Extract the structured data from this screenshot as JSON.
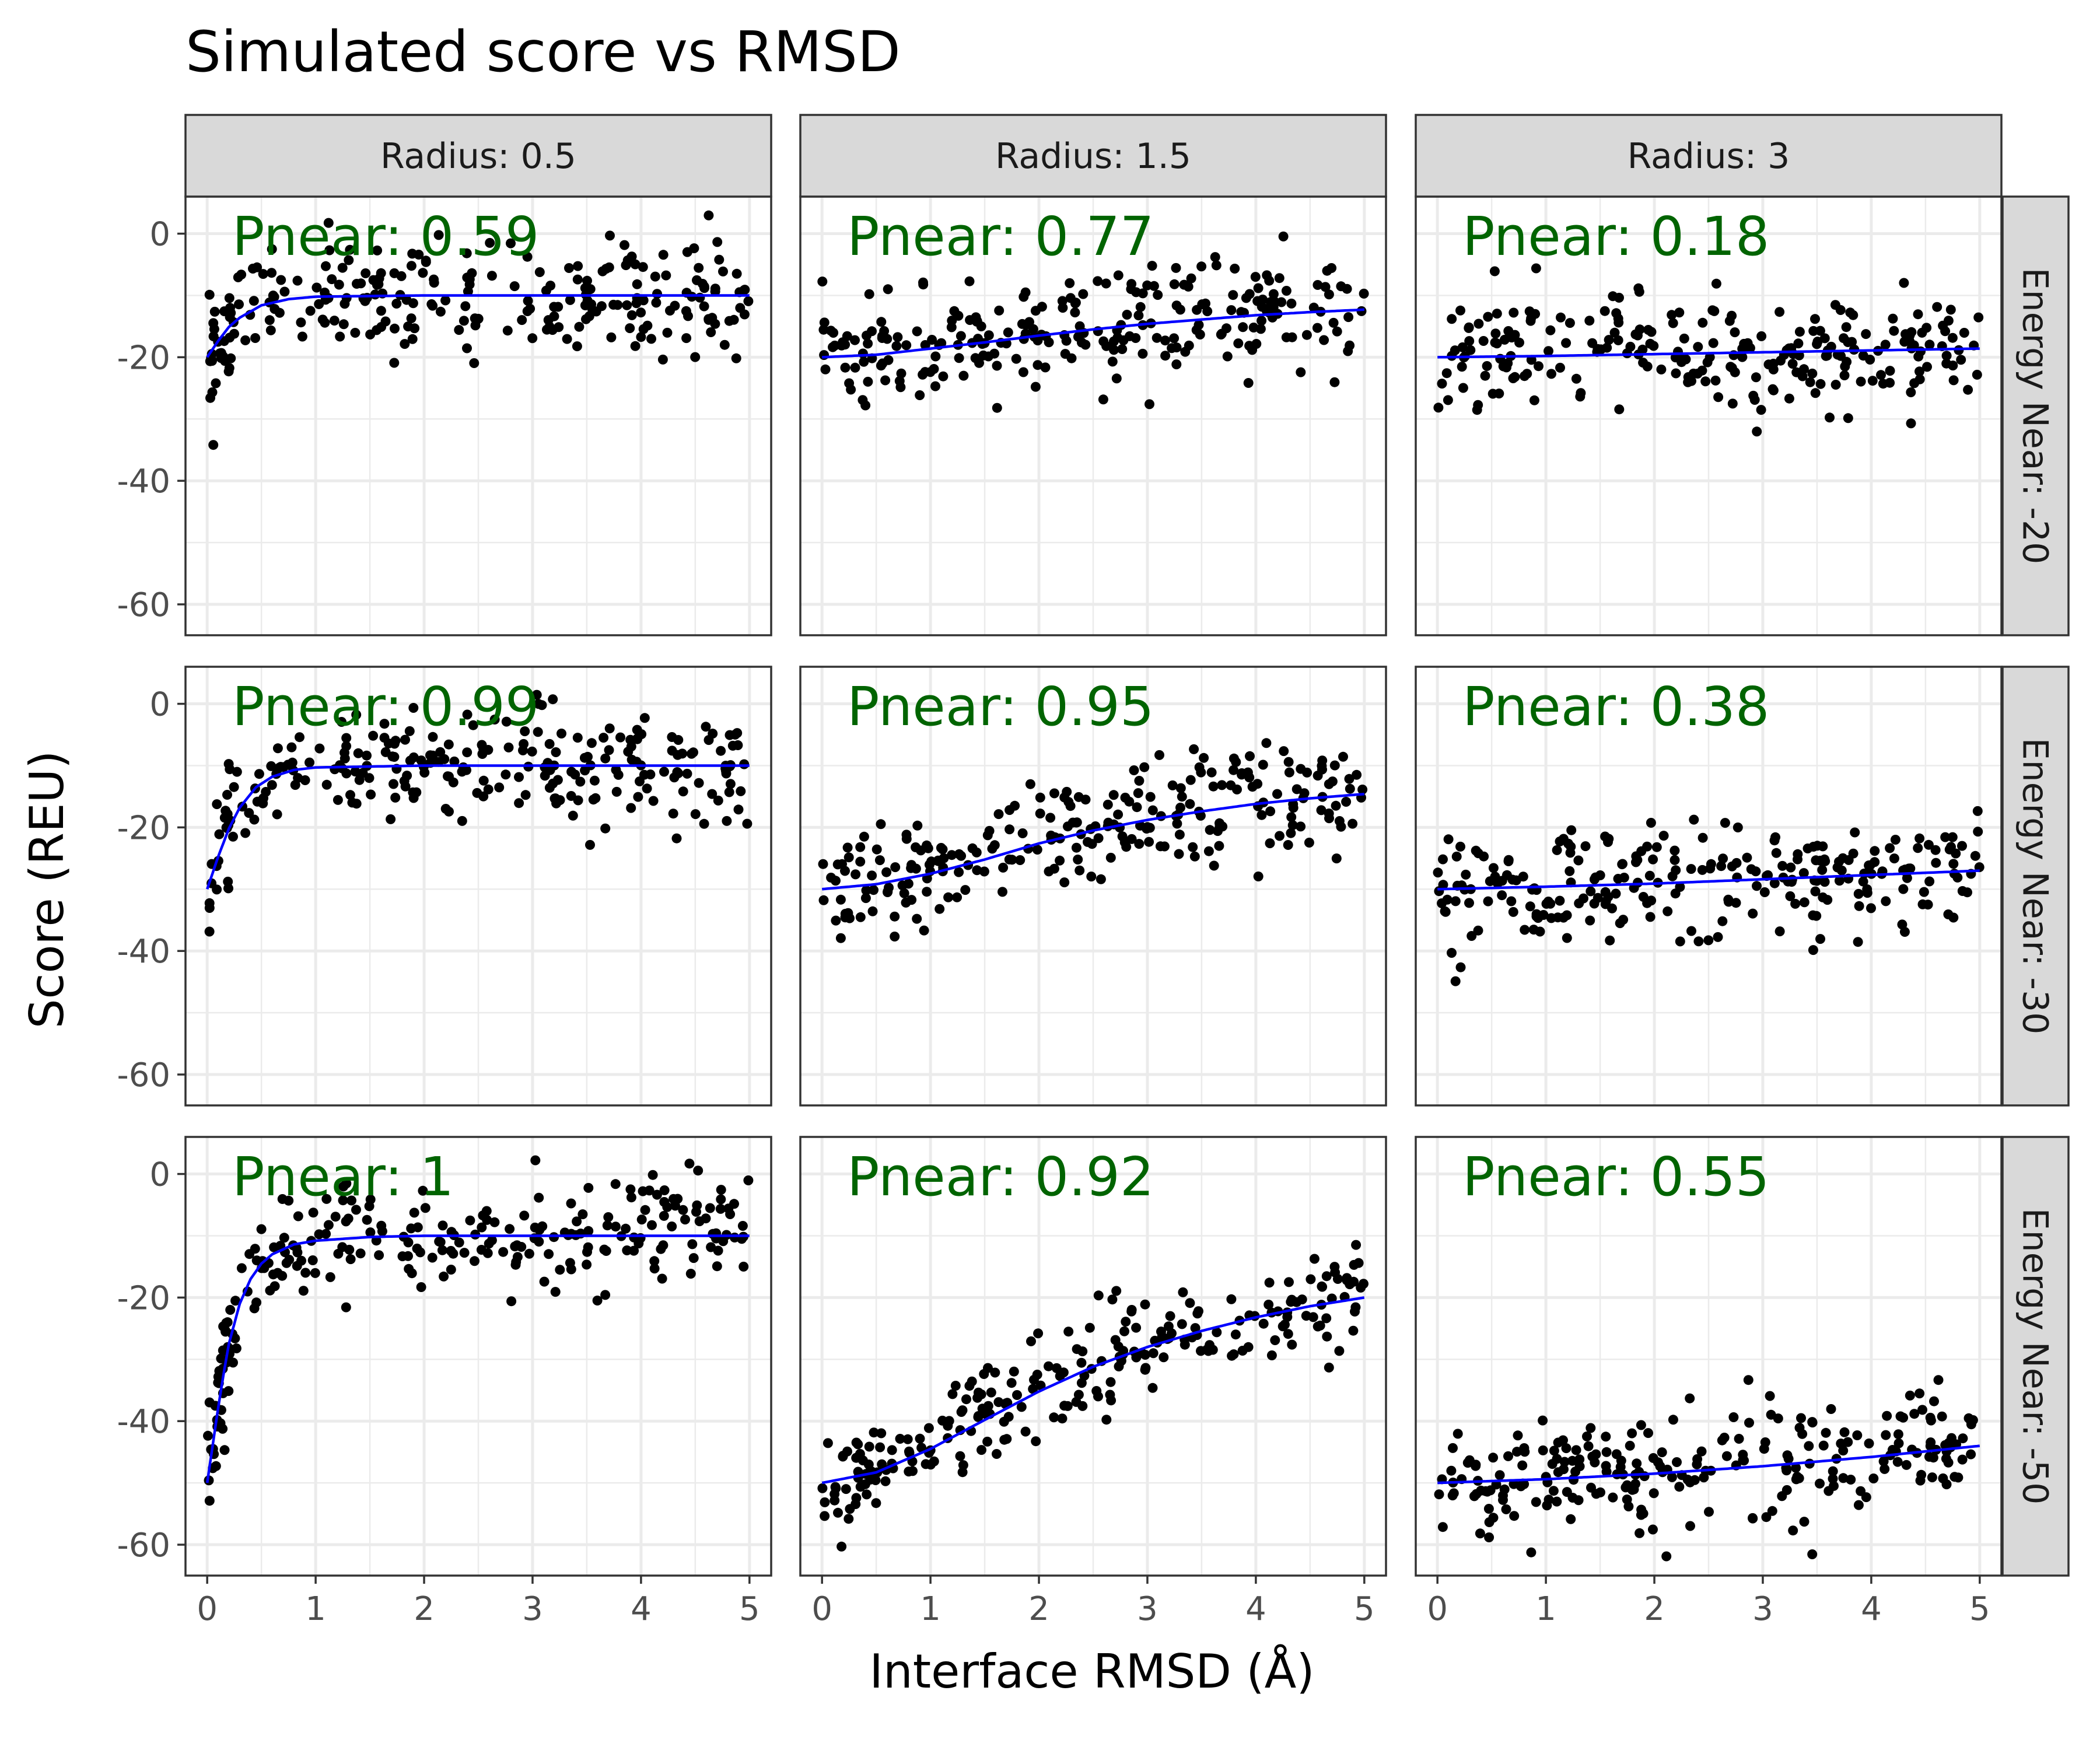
{
  "chart_data": {
    "type": "scatter",
    "title": "Simulated score vs RMSD",
    "xlabel": "Interface RMSD (Å)",
    "ylabel": "Score (REU)",
    "xlim": [
      -0.2,
      5.2
    ],
    "ylim": [
      -65,
      6
    ],
    "xticks": [
      0,
      1,
      2,
      3,
      4,
      5
    ],
    "yticks": [
      0,
      -20,
      -40,
      -60
    ],
    "grid": true,
    "col_facet_labels": [
      "Radius: 0.5",
      "Radius: 1.5",
      "Radius: 3"
    ],
    "row_facet_labels": [
      "Energy Near: -20",
      "Energy Near: -30",
      "Energy Near: -50"
    ],
    "colors": {
      "points": "#000000",
      "fit_line": "#0000ff",
      "pnear_text": "#006400",
      "strip_bg": "#d9d9d9",
      "grid": "#ebebeb"
    },
    "points_per_panel": 250,
    "panels": [
      {
        "row": 0,
        "col": 0,
        "pnear_label": "Pnear: 0.59",
        "energy_near": -20,
        "radius": 0.5,
        "noise_sd": 4.5,
        "fit": [
          [
            0,
            -20
          ],
          [
            0.1,
            -17.4
          ],
          [
            0.2,
            -15.1
          ],
          [
            0.3,
            -13.6
          ],
          [
            0.5,
            -11.6
          ],
          [
            0.75,
            -10.6
          ],
          [
            1,
            -10.2
          ],
          [
            2,
            -10
          ],
          [
            3,
            -10
          ],
          [
            4,
            -10
          ],
          [
            5,
            -10
          ]
        ]
      },
      {
        "row": 0,
        "col": 1,
        "pnear_label": "Pnear: 0.77",
        "energy_near": -20,
        "radius": 1.5,
        "noise_sd": 4.5,
        "fit": [
          [
            0,
            -20
          ],
          [
            0.5,
            -19.6
          ],
          [
            1,
            -18.6
          ],
          [
            1.5,
            -17.6
          ],
          [
            2,
            -16.5
          ],
          [
            2.5,
            -15.5
          ],
          [
            3,
            -14.6
          ],
          [
            3.5,
            -13.9
          ],
          [
            4,
            -13.2
          ],
          [
            4.5,
            -12.7
          ],
          [
            5,
            -12.3
          ]
        ]
      },
      {
        "row": 0,
        "col": 2,
        "pnear_label": "Pnear: 0.18",
        "energy_near": -20,
        "radius": 3,
        "noise_sd": 4.5,
        "fit": [
          [
            0,
            -20
          ],
          [
            1,
            -19.8
          ],
          [
            2,
            -19.5
          ],
          [
            3,
            -19.2
          ],
          [
            4,
            -18.9
          ],
          [
            5,
            -18.6
          ]
        ]
      },
      {
        "row": 1,
        "col": 0,
        "pnear_label": "Pnear: 0.99",
        "energy_near": -30,
        "radius": 0.5,
        "noise_sd": 4.5,
        "fit": [
          [
            0,
            -30
          ],
          [
            0.1,
            -24.8
          ],
          [
            0.2,
            -20.2
          ],
          [
            0.3,
            -16.8
          ],
          [
            0.45,
            -13.5
          ],
          [
            0.6,
            -11.8
          ],
          [
            0.8,
            -10.7
          ],
          [
            1,
            -10.3
          ],
          [
            2,
            -10
          ],
          [
            3,
            -10
          ],
          [
            4,
            -10
          ],
          [
            5,
            -10
          ]
        ]
      },
      {
        "row": 1,
        "col": 1,
        "pnear_label": "Pnear: 0.95",
        "energy_near": -30,
        "radius": 1.5,
        "noise_sd": 4.5,
        "fit": [
          [
            0,
            -30
          ],
          [
            0.5,
            -29.2
          ],
          [
            1,
            -27.5
          ],
          [
            1.5,
            -25.2
          ],
          [
            2,
            -22.6
          ],
          [
            2.5,
            -20.5
          ],
          [
            3,
            -18.8
          ],
          [
            3.5,
            -17.4
          ],
          [
            4,
            -16.2
          ],
          [
            4.5,
            -15.3
          ],
          [
            5,
            -14.6
          ]
        ]
      },
      {
        "row": 1,
        "col": 2,
        "pnear_label": "Pnear: 0.38",
        "energy_near": -30,
        "radius": 3,
        "noise_sd": 4.5,
        "fit": [
          [
            0,
            -30
          ],
          [
            1,
            -29.6
          ],
          [
            2,
            -29.1
          ],
          [
            3,
            -28.4
          ],
          [
            4,
            -27.7
          ],
          [
            5,
            -27.0
          ]
        ]
      },
      {
        "row": 2,
        "col": 0,
        "pnear_label": "Pnear: 1",
        "energy_near": -50,
        "radius": 0.5,
        "noise_sd": 4.5,
        "fit": [
          [
            0,
            -50
          ],
          [
            0.05,
            -44
          ],
          [
            0.1,
            -38
          ],
          [
            0.15,
            -32.5
          ],
          [
            0.2,
            -27.5
          ],
          [
            0.3,
            -21
          ],
          [
            0.4,
            -17
          ],
          [
            0.5,
            -14.5
          ],
          [
            0.6,
            -13
          ],
          [
            0.8,
            -11.4
          ],
          [
            1,
            -10.8
          ],
          [
            1.5,
            -10.2
          ],
          [
            2,
            -10
          ],
          [
            3,
            -10
          ],
          [
            4,
            -10
          ],
          [
            5,
            -10
          ]
        ]
      },
      {
        "row": 2,
        "col": 1,
        "pnear_label": "Pnear: 0.92",
        "energy_near": -50,
        "radius": 1.5,
        "noise_sd": 4.5,
        "fit": [
          [
            0,
            -50
          ],
          [
            0.5,
            -48.3
          ],
          [
            1,
            -44.5
          ],
          [
            1.5,
            -39.8
          ],
          [
            2,
            -35.2
          ],
          [
            2.5,
            -31.2
          ],
          [
            3,
            -28
          ],
          [
            3.5,
            -25.4
          ],
          [
            4,
            -23.2
          ],
          [
            4.5,
            -21.4
          ],
          [
            5,
            -20
          ]
        ]
      },
      {
        "row": 2,
        "col": 2,
        "pnear_label": "Pnear: 0.55",
        "energy_near": -50,
        "radius": 3,
        "noise_sd": 4.5,
        "fit": [
          [
            0,
            -50
          ],
          [
            1,
            -49.4
          ],
          [
            2,
            -48.5
          ],
          [
            3,
            -47.3
          ],
          [
            4,
            -45.8
          ],
          [
            5,
            -44
          ]
        ]
      }
    ]
  }
}
